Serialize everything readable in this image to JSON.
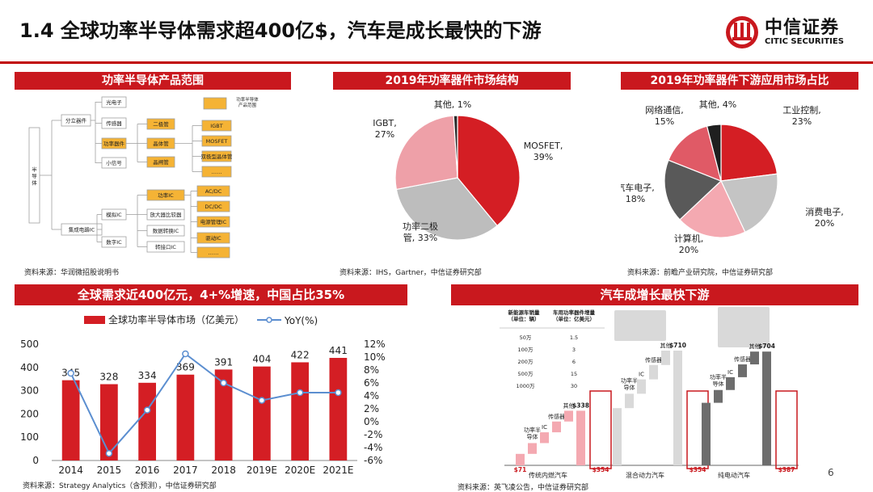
{
  "header": {
    "title": "1.4 全球功率半导体需求超400亿$，汽车是成长最快的下游",
    "logo_cn": "中信证券",
    "logo_en": "CITIC SECURITIES"
  },
  "page_number": "6",
  "panels": {
    "tree": {
      "title": "功率半导体产品范围",
      "source": "资料来源：华润微招股说明书"
    },
    "pie1": {
      "title": "2019年功率器件市场结构",
      "source": "资料来源：IHS，Gartner，中信证券研究部"
    },
    "pie2": {
      "title": "2019年功率器件下游应用市场占比",
      "source": "资料来源：前瞻产业研究院，中信证券研究部"
    },
    "combo": {
      "title": "全球需求近400亿元，4+%增速，中国占比35%",
      "source": "资料来源：Strategy Analytics（含预测），中信证券研究部"
    },
    "auto": {
      "title": "汽车成增长最快下游",
      "source": "资料来源：英飞凌公告，中信证券研究部"
    }
  },
  "tree": {
    "root": "半导体",
    "level1": [
      "分立器件",
      "集成电路IC"
    ],
    "level2": [
      "光电子",
      "传感器",
      "功率器件",
      "小信号",
      "模拟IC",
      "数字IC"
    ],
    "power_devices": [
      "二极管",
      "晶体管",
      "晶闸管"
    ],
    "transistors": [
      "IGBT",
      "MOSFET",
      "双极型晶体管",
      "……"
    ],
    "analog": [
      "功率IC",
      "放大器比较器",
      "数据转换IC",
      "转接口IC"
    ],
    "power_ic": [
      "AC/DC",
      "DC/DC",
      "电源管理IC",
      "驱动IC",
      "……"
    ],
    "legend": "功率半导体产品范围",
    "colors": {
      "highlight": "#f5b335",
      "box_border": "#a0a0a0"
    }
  },
  "chart_data": [
    {
      "type": "pie",
      "title": "2019年功率器件市场结构",
      "slices": [
        {
          "label": "MOSFET",
          "value": 39,
          "display": "MOSFET,\n39%",
          "color": "#d41e24"
        },
        {
          "label": "功率二极管",
          "value": 33,
          "display": "功率二极\n管, 33%",
          "color": "#bdbdbd"
        },
        {
          "label": "IGBT",
          "value": 27,
          "display": "IGBT,\n27%",
          "color": "#eea0a8"
        },
        {
          "label": "其他",
          "value": 1,
          "display": "其他, 1%",
          "color": "#2a2a2a"
        }
      ]
    },
    {
      "type": "pie",
      "title": "2019年功率器件下游应用市场占比",
      "slices": [
        {
          "label": "工业控制",
          "value": 23,
          "display": "工业控制,\n23%",
          "color": "#d41e24"
        },
        {
          "label": "消费电子",
          "value": 20,
          "display": "消费电子,\n20%",
          "color": "#c4c4c4"
        },
        {
          "label": "计算机",
          "value": 20,
          "display": "计算机,\n20%",
          "color": "#f4a9b1"
        },
        {
          "label": "汽车电子",
          "value": 18,
          "display": "汽车电子,\n18%",
          "color": "#595959"
        },
        {
          "label": "网络通信",
          "value": 15,
          "display": "网络通信,\n15%",
          "color": "#e05a66"
        },
        {
          "label": "其他",
          "value": 4,
          "display": "其他, 4%",
          "color": "#1f1f1f"
        }
      ]
    },
    {
      "type": "bar",
      "title": "全球需求近400亿元，4+%增速，中国占比35%",
      "categories": [
        "2014",
        "2015",
        "2016",
        "2017",
        "2018",
        "2019E",
        "2020E",
        "2021E"
      ],
      "series": [
        {
          "name": "全球功率半导体市场（亿美元）",
          "type": "bar",
          "values": [
            345,
            328,
            334,
            369,
            391,
            404,
            422,
            441
          ],
          "color": "#d41e24"
        },
        {
          "name": "YoY(%)",
          "type": "line",
          "axis": "right",
          "values": [
            7.5,
            -4.9,
            1.8,
            10.5,
            6.0,
            3.3,
            4.5,
            4.5
          ],
          "color": "#5b8ed0"
        }
      ],
      "ylim": [
        0,
        500
      ],
      "yticks": [
        "0",
        "100",
        "200",
        "300",
        "400",
        "500"
      ],
      "y2lim": [
        -6,
        12
      ],
      "y2ticks": [
        "-6%",
        "-4%",
        "-2%",
        "0%",
        "2%",
        "4%",
        "6%",
        "8%",
        "10%",
        "12%"
      ]
    },
    {
      "type": "table",
      "title": "新能源车销量与车用功率器件增量",
      "headers": [
        "新能源车销量\n（单位：辆）",
        "车用功率器件增量\n（单位：亿美元）"
      ],
      "rows": [
        [
          "50万",
          "1.5"
        ],
        [
          "100万",
          "3"
        ],
        [
          "200万",
          "6"
        ],
        [
          "500万",
          "15"
        ],
        [
          "1000万",
          "30"
        ]
      ]
    },
    {
      "type": "bar",
      "title": "汽车成增长最快下游",
      "groups": [
        {
          "name": "传统内燃汽车",
          "start": 71,
          "total": 338,
          "start_label": "$71",
          "total_label": "$338",
          "highlight_label": "$354",
          "steps": [
            {
              "label": "功率半\n导体",
              "color": "#f4a9b1"
            },
            {
              "label": "IC",
              "color": "#f4a9b1"
            },
            {
              "label": "传感器",
              "color": "#f4a9b1"
            },
            {
              "label": "其他",
              "color": "#f4a9b1"
            }
          ]
        },
        {
          "name": "混合动力汽车",
          "start": 354,
          "total": 710,
          "total_label": "$710",
          "highlight_label": "$354",
          "steps": [
            {
              "label": "功率半\n导体",
              "color": "#d9d9d9"
            },
            {
              "label": "IC",
              "color": "#d9d9d9"
            },
            {
              "label": "传感器",
              "color": "#d9d9d9"
            },
            {
              "label": "其他",
              "color": "#d9d9d9"
            }
          ]
        },
        {
          "name": "纯电动汽车",
          "start": 387,
          "total": 704,
          "total_label": "$704",
          "highlight_label": "$387",
          "steps": [
            {
              "label": "功率半\n导体",
              "color": "#6d6d6d"
            },
            {
              "label": "IC",
              "color": "#6d6d6d"
            },
            {
              "label": "传感器",
              "color": "#6d6d6d"
            },
            {
              "label": "其他",
              "color": "#6d6d6d"
            }
          ]
        }
      ]
    }
  ]
}
